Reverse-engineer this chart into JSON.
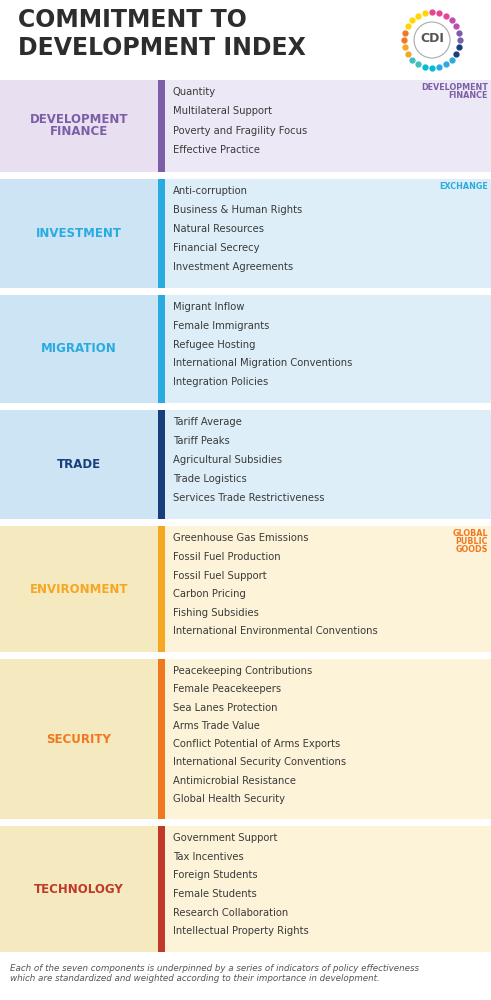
{
  "title_line1": "COMMITMENT TO",
  "title_line2": "DEVELOPMENT INDEX",
  "title_color": "#2d2d2d",
  "footer_text": "Each of the seven components is underpinned by a series of indicators of policy effectiveness\nwhich are standardized and weighted according to their importance in development.",
  "bg_color": "#f4f4f4",
  "sections": [
    {
      "label": "DEVELOPMENT\nFINANCE",
      "label_color": "#7b5ea7",
      "row_bg": "#ede8f5",
      "left_bg": "#e8e0f0",
      "bar_color": "#7b5ea7",
      "items": [
        "Quantity",
        "Multilateral Support",
        "Poverty and Fragility Focus",
        "Effective Practice"
      ],
      "tag": "DEVELOPMENT\nFINANCE",
      "tag_color": "#7b5ea7"
    },
    {
      "label": "INVESTMENT",
      "label_color": "#29abe2",
      "row_bg": "#ddeef8",
      "left_bg": "#cce4f3",
      "bar_color": "#29abe2",
      "items": [
        "Anti-corruption",
        "Business & Human Rights",
        "Natural Resources",
        "Financial Secrecy",
        "Investment Agreements"
      ],
      "tag": "EXCHANGE",
      "tag_color": "#29abe2"
    },
    {
      "label": "MIGRATION",
      "label_color": "#29abe2",
      "row_bg": "#ddeef8",
      "left_bg": "#cce4f3",
      "bar_color": "#29abe2",
      "items": [
        "Migrant Inflow",
        "Female Immigrants",
        "Refugee Hosting",
        "International Migration Conventions",
        "Integration Policies"
      ],
      "tag": "",
      "tag_color": "#29abe2"
    },
    {
      "label": "TRADE",
      "label_color": "#1a3d7c",
      "row_bg": "#ddeef8",
      "left_bg": "#cce4f3",
      "bar_color": "#1a3d7c",
      "items": [
        "Tariff Average",
        "Tariff Peaks",
        "Agricultural Subsidies",
        "Trade Logistics",
        "Services Trade Restrictiveness"
      ],
      "tag": "",
      "tag_color": "#1a3d7c"
    },
    {
      "label": "ENVIRONMENT",
      "label_color": "#f5a623",
      "row_bg": "#fdf3d9",
      "left_bg": "#f5e9c0",
      "bar_color": "#f5a623",
      "items": [
        "Greenhouse Gas Emissions",
        "Fossil Fuel Production",
        "Fossil Fuel Support",
        "Carbon Pricing",
        "Fishing Subsidies",
        "International Environmental Conventions"
      ],
      "tag": "GLOBAL\nPUBLIC\nGOODS",
      "tag_color": "#f07820"
    },
    {
      "label": "SECURITY",
      "label_color": "#f07820",
      "row_bg": "#fdf3d9",
      "left_bg": "#f5e9c0",
      "bar_color": "#f07820",
      "items": [
        "Peacekeeping Contributions",
        "Female Peacekeepers",
        "Sea Lanes Protection",
        "Arms Trade Value",
        "Conflict Potential of Arms Exports",
        "International Security Conventions",
        "Antimicrobial Resistance",
        "Global Health Security"
      ],
      "tag": "",
      "tag_color": "#f07820"
    },
    {
      "label": "TECHNOLOGY",
      "label_color": "#c0392b",
      "row_bg": "#fdf3d9",
      "left_bg": "#f5e9c0",
      "bar_color": "#c0392b",
      "items": [
        "Government Support",
        "Tax Incentives",
        "Foreign Students",
        "Female Students",
        "Research Collaboration",
        "Intellectual Property Rights"
      ],
      "tag": "",
      "tag_color": "#c0392b"
    }
  ],
  "logo_dots": [
    {
      "color": "#e84393",
      "count": 3
    },
    {
      "color": "#c04ab4",
      "count": 2
    },
    {
      "color": "#7b5ea7",
      "count": 2
    },
    {
      "color": "#1a3d7c",
      "count": 2
    },
    {
      "color": "#29abe2",
      "count": 3
    },
    {
      "color": "#00bcd4",
      "count": 2
    },
    {
      "color": "#3dbfbf",
      "count": 2
    },
    {
      "color": "#f5a623",
      "count": 2
    },
    {
      "color": "#f07820",
      "count": 2
    },
    {
      "color": "#ffd700",
      "count": 4
    }
  ]
}
